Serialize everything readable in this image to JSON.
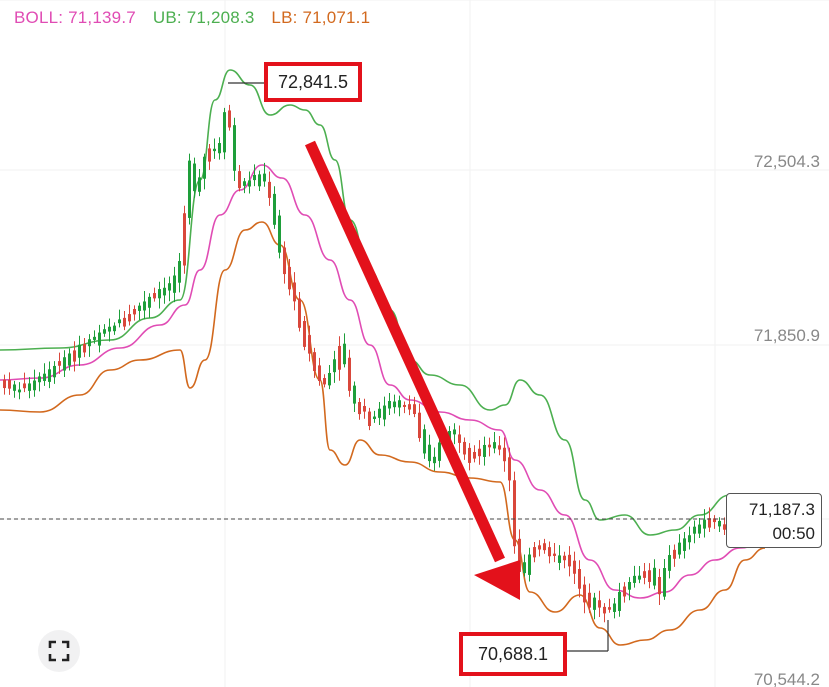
{
  "legend": {
    "boll": "BOLL: 71,139.7",
    "ub": "UB: 71,208.3",
    "lb": "LB: 71,071.1"
  },
  "colors": {
    "boll": "#e04cb4",
    "ub": "#4caf50",
    "lb": "#d2691e",
    "up": "#1e9e3a",
    "down": "#d9473b",
    "arrow": "#e3111b"
  },
  "axis": {
    "price_ticks": [
      "72,504.3",
      "71,850.9",
      "70,544.2"
    ]
  },
  "current_price": {
    "price": "71,187.3",
    "countdown": "00:50"
  },
  "annotations": {
    "high": "72,841.5",
    "low": "70,688.1"
  },
  "fullscreen_icon": "expand-icon",
  "chart_data": {
    "type": "candlestick",
    "ylim": [
      70544.2,
      72950
    ],
    "grid": true,
    "high_marker": 72841.5,
    "low_marker": 70688.1,
    "last_price": 71187.3,
    "indicators": [
      "BOLL",
      "UB",
      "LB"
    ]
  }
}
